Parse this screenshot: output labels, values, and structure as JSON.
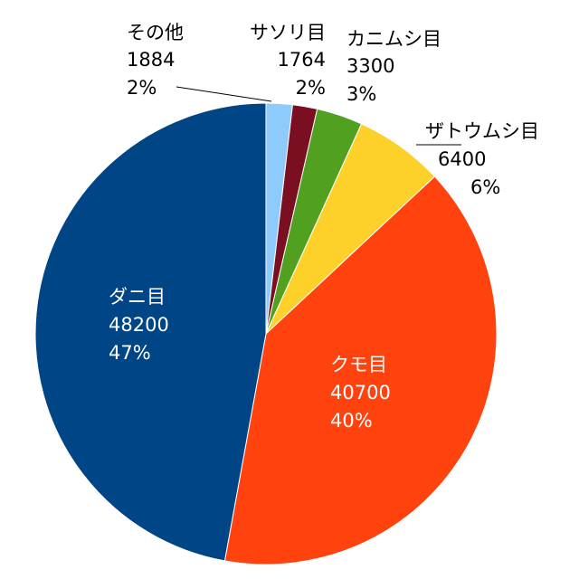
{
  "chart_data": {
    "type": "pie",
    "title": "",
    "slices": [
      {
        "name": "その他",
        "value": 1884,
        "percent": "2%",
        "color": "#8ecafc"
      },
      {
        "name": "サソリ目",
        "value": 1764,
        "percent": "2%",
        "color": "#7a0f22"
      },
      {
        "name": "カニムシ目",
        "value": 3300,
        "percent": "3%",
        "color": "#52a020"
      },
      {
        "name": "ザトウムシ目",
        "value": 6400,
        "percent": "6%",
        "color": "#fdd12a"
      },
      {
        "name": "クモ目",
        "value": 40700,
        "percent": "40%",
        "color": "#ff420e"
      },
      {
        "name": "ダニ目",
        "value": 48200,
        "percent": "47%",
        "color": "#004586"
      }
    ]
  }
}
